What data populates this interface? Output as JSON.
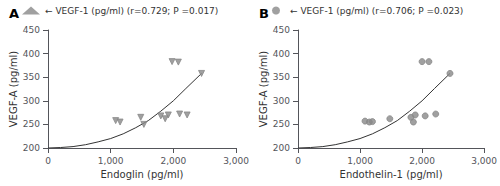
{
  "chart_data": [
    {
      "type": "scatter",
      "title": "A",
      "xlabel": "Endoglin (pg/ml)",
      "ylabel": "VEGF-A (pg/ml)",
      "xlim": [
        0,
        3000
      ],
      "ylim": [
        200,
        450
      ],
      "xticks": [
        0,
        1000,
        2000,
        3000
      ],
      "yticks": [
        200,
        250,
        300,
        350,
        400,
        450
      ],
      "grid": false,
      "legend": "upper left",
      "series": [
        {
          "type": "line",
          "color": "#333333",
          "x": [
            0,
            200,
            400,
            600,
            800,
            1000,
            1200,
            1400,
            1600,
            1800,
            2000,
            2200,
            2450
          ],
          "values": [
            200,
            201,
            203,
            207,
            213,
            220,
            230,
            243,
            258,
            278,
            300,
            326,
            358
          ]
        },
        {
          "type": "scatter",
          "name": "← VEGF-1 (pg/ml) (r=0.729; P =0.017)",
          "color": "#888888",
          "marker": "triangle_down",
          "x": [
            1080,
            1150,
            1480,
            1530,
            1800,
            1870,
            1920,
            2100,
            2220,
            2450
          ],
          "values": [
            258,
            255,
            265,
            250,
            268,
            262,
            270,
            272,
            270,
            358
          ]
        },
        {
          "type": "scatter",
          "color": "#888888",
          "marker": "triangle_down",
          "x": [
            1980,
            2080
          ],
          "values": [
            383,
            382
          ]
        }
      ]
    },
    {
      "type": "scatter",
      "title": "B",
      "xlabel": "Endothelin-1 (pg/ml)",
      "ylabel": "VEGF-A (pg/ml)",
      "xlim": [
        0,
        3000
      ],
      "ylim": [
        200,
        450
      ],
      "xticks": [
        0,
        1000,
        2000,
        3000
      ],
      "yticks": [
        200,
        250,
        300,
        350,
        400,
        450
      ],
      "grid": false,
      "legend": "upper left",
      "series": [
        {
          "type": "line",
          "color": "#333333",
          "x": [
            0,
            200,
            400,
            600,
            800,
            1000,
            1200,
            1400,
            1600,
            1800,
            2000,
            2200,
            2450
          ],
          "values": [
            200,
            201,
            203,
            207,
            213,
            220,
            230,
            243,
            258,
            278,
            300,
            326,
            358
          ]
        },
        {
          "type": "scatter",
          "name": "← VEGF-1 (pg/ml) (r=0.706; P =0.023)",
          "color": "#888888",
          "marker": "circle",
          "x": [
            1080,
            1150,
            1200,
            1480,
            1820,
            1860,
            1890,
            2050,
            2220,
            2450
          ],
          "values": [
            257,
            255,
            256,
            262,
            265,
            255,
            270,
            268,
            272,
            358
          ]
        },
        {
          "type": "scatter",
          "color": "#888888",
          "marker": "circle",
          "x": [
            2000,
            2110
          ],
          "values": [
            383,
            383
          ]
        }
      ]
    }
  ]
}
